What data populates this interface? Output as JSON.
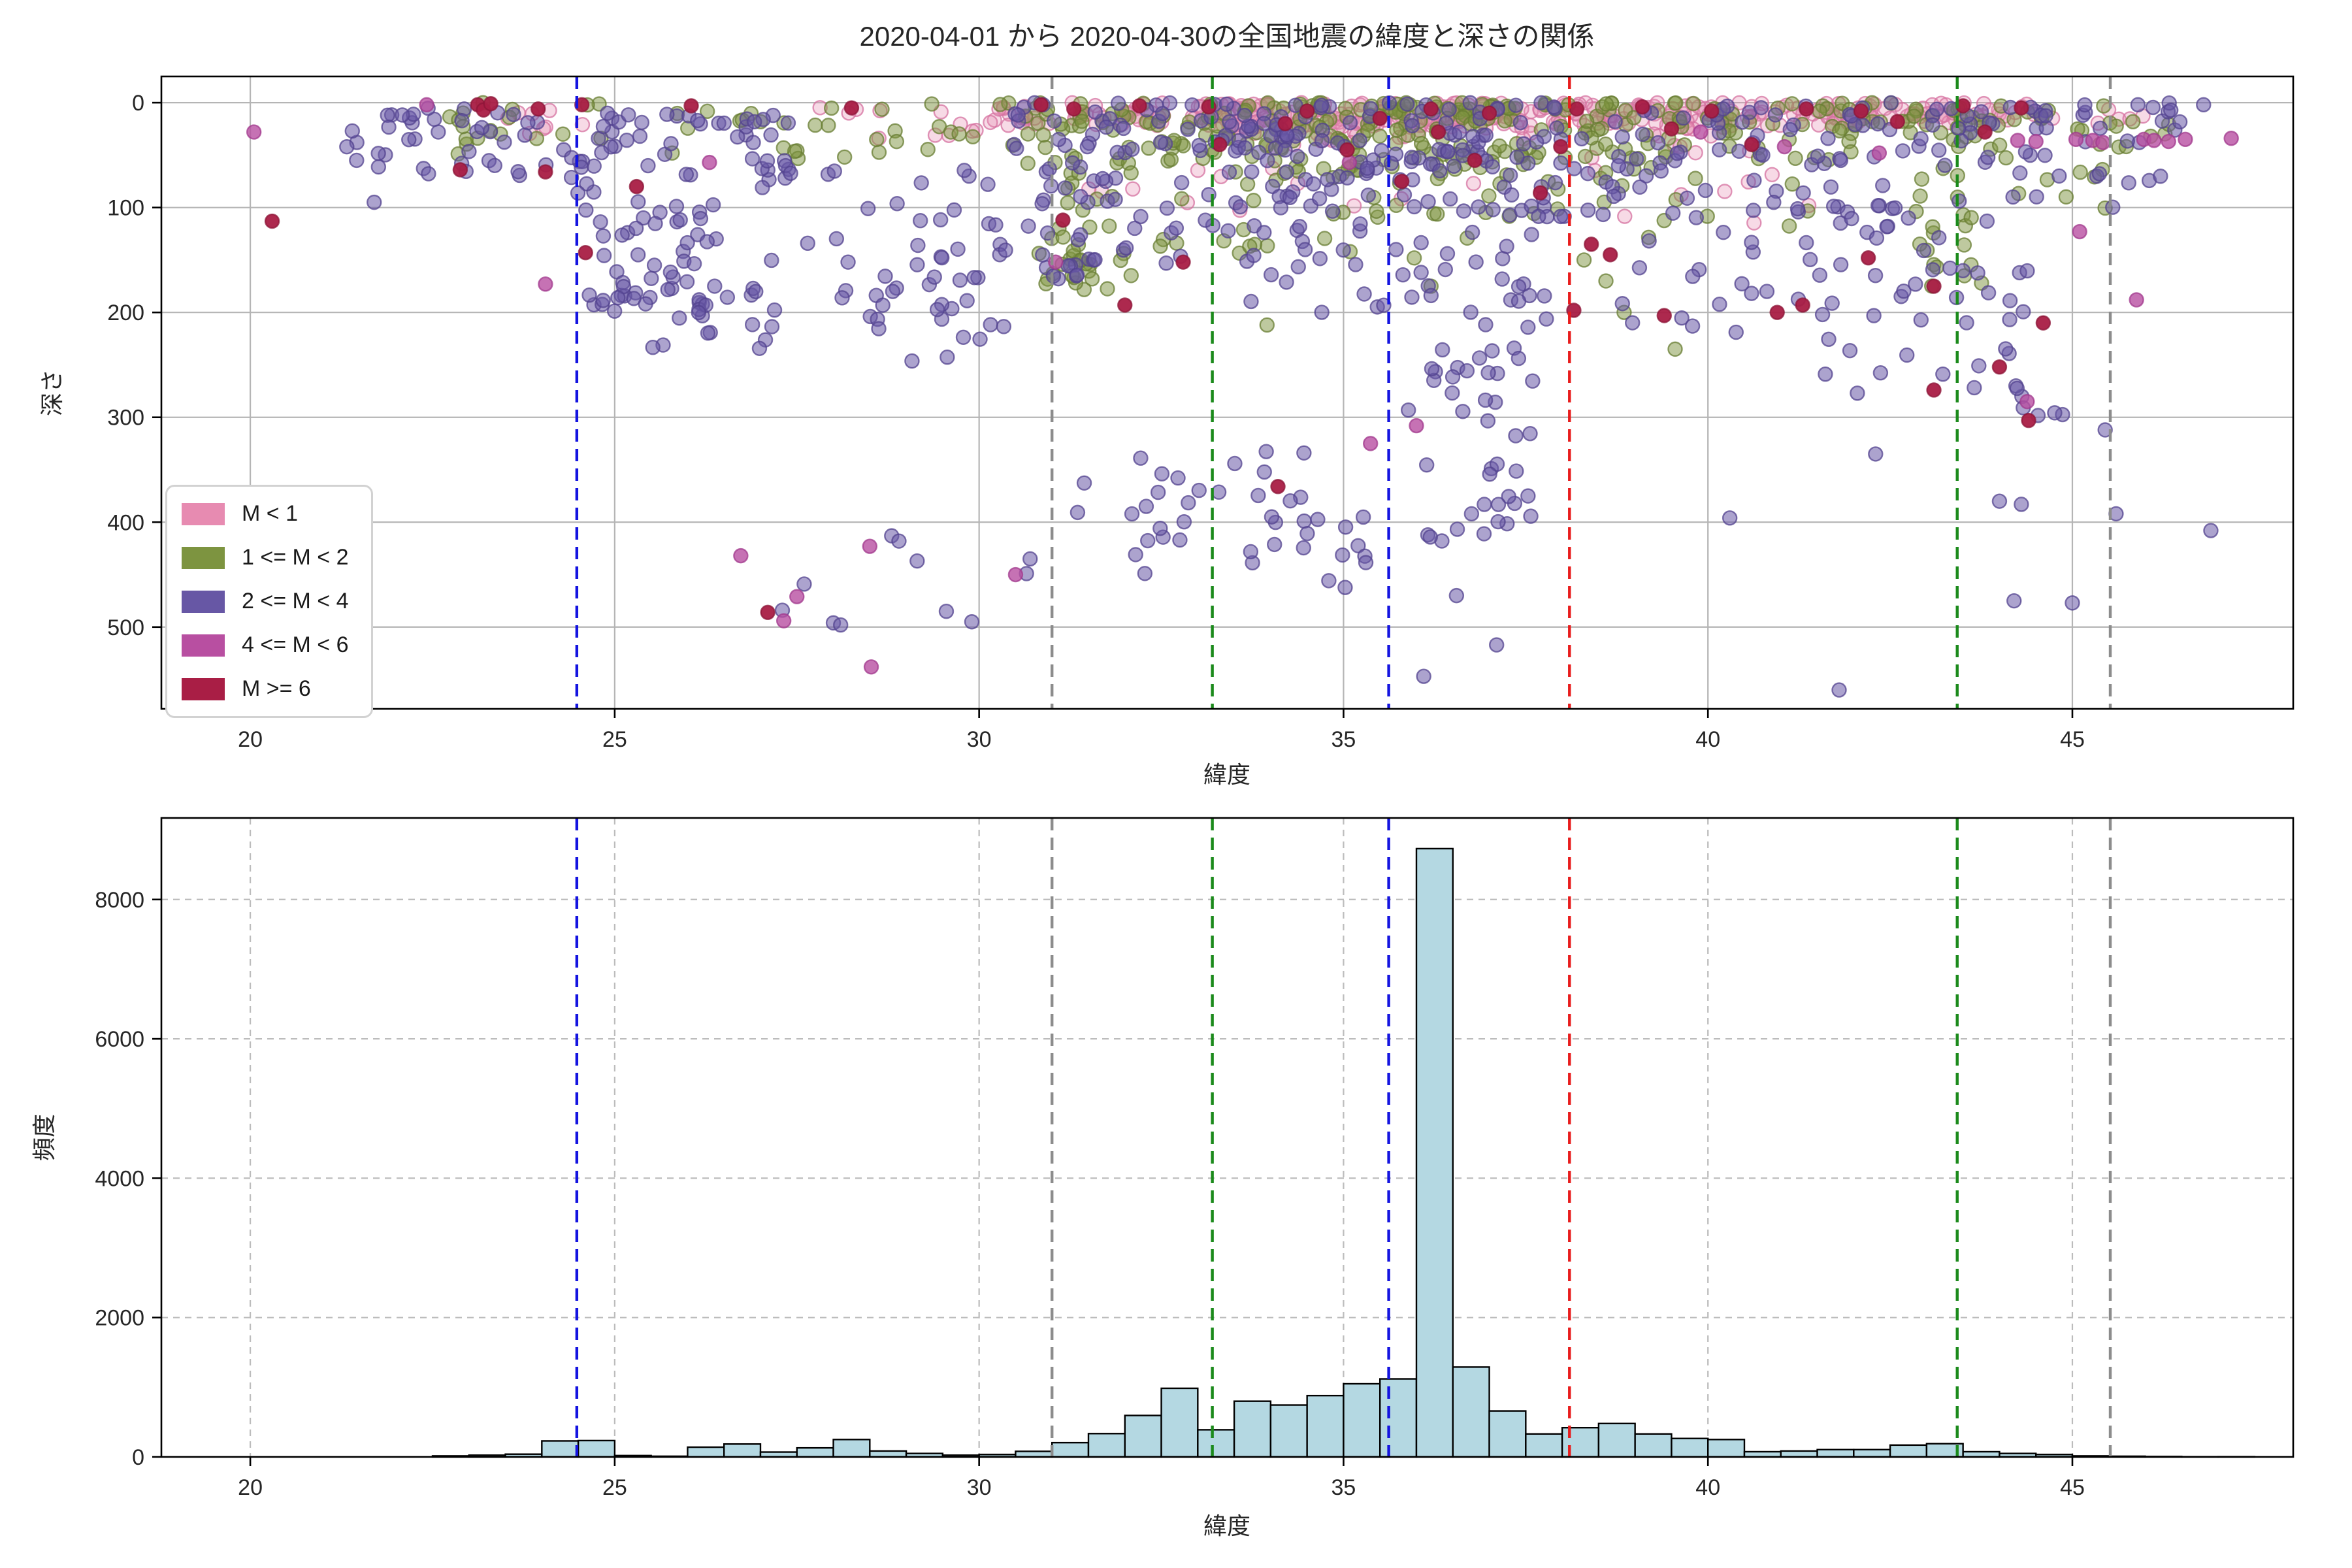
{
  "title": "2020-04-01 から 2020-04-30の全国地震の緯度と深さの関係",
  "chart_data": [
    {
      "type": "scatter",
      "title": "2020-04-01 から 2020-04-30の全国地震の緯度と深さの関係",
      "xlabel": "緯度",
      "ylabel": "深さ",
      "xlim": [
        18.78,
        48.03
      ],
      "ylim": [
        -25,
        578
      ],
      "y_inverted": true,
      "xticks": [
        20,
        25,
        30,
        35,
        40,
        45
      ],
      "yticks": [
        0,
        100,
        200,
        300,
        400,
        500
      ],
      "grid": "solid",
      "grid_color": "#b5b5b5",
      "legend_position": "lower left",
      "class_order": [
        "m0",
        "m1",
        "m2",
        "m4",
        "m6"
      ],
      "classes": {
        "m0": {
          "label": "M < 1",
          "fill": "#e78bb1",
          "edge": "#d672a0",
          "fill_opacity": 0.32
        },
        "m1": {
          "label": "1 <= M < 2",
          "fill": "#7d9440",
          "edge": "#687d33",
          "fill_opacity": 0.5
        },
        "m2": {
          "label": "2 <= M < 4",
          "fill": "#6757a5",
          "edge": "#53438f",
          "fill_opacity": 0.55
        },
        "m4": {
          "label": "4 <= M < 6",
          "fill": "#b84fa1",
          "edge": "#a23a8d",
          "fill_opacity": 0.8
        },
        "m6": {
          "label": "M >= 6",
          "fill": "#a91e45",
          "edge": "#8e1538",
          "fill_opacity": 0.95
        }
      },
      "ref_lines": [
        {
          "lat": 24.48,
          "color": "#1414e0"
        },
        {
          "lat": 31.0,
          "color": "#8c8c8c"
        },
        {
          "lat": 33.2,
          "color": "#1b8a1b"
        },
        {
          "lat": 35.62,
          "color": "#1414e0"
        },
        {
          "lat": 38.1,
          "color": "#e81c1c"
        },
        {
          "lat": 43.42,
          "color": "#1b8a1b"
        },
        {
          "lat": 45.52,
          "color": "#8c8c8c"
        }
      ],
      "marker_radius": 10.5,
      "clusters": {
        "m0": [
          [
            30.2,
            33.0,
            0,
            22,
            45,
            1
          ],
          [
            33.0,
            37.6,
            0,
            24,
            150,
            1
          ],
          [
            37.6,
            42.2,
            0,
            22,
            110,
            1
          ],
          [
            42.2,
            44.6,
            0,
            20,
            45,
            1
          ],
          [
            33.5,
            41.0,
            20,
            55,
            35,
            1.2
          ],
          [
            31.5,
            41.5,
            55,
            115,
            20,
            1
          ],
          [
            27.8,
            30.2,
            0,
            35,
            12,
            1
          ],
          [
            23.3,
            25.2,
            0,
            30,
            8,
            1
          ],
          [
            44.6,
            46.2,
            2,
            20,
            6,
            1
          ]
        ],
        "m1": [
          [
            30.3,
            33.2,
            0,
            60,
            55,
            1.4
          ],
          [
            33.2,
            38.0,
            0,
            65,
            150,
            1.4
          ],
          [
            38.0,
            42.5,
            0,
            55,
            80,
            1.3
          ],
          [
            42.5,
            46.4,
            0,
            45,
            45,
            1.2
          ],
          [
            22.6,
            27.0,
            0,
            50,
            25,
            1.2
          ],
          [
            27.0,
            30.3,
            0,
            60,
            22,
            1.2
          ],
          [
            31.0,
            36.5,
            65,
            150,
            45,
            1.2
          ],
          [
            36.5,
            41.5,
            60,
            130,
            25,
            1
          ],
          [
            31.2,
            32.2,
            140,
            185,
            8,
            1
          ],
          [
            43.0,
            45.5,
            50,
            110,
            10,
            1
          ],
          [
            42.8,
            43.8,
            60,
            180,
            18,
            1
          ],
          [
            30.8,
            31.4,
            125,
            185,
            14,
            1
          ]
        ],
        "m2": [
          [
            21.2,
            24.4,
            5,
            70,
            40,
            1.2
          ],
          [
            24.4,
            27.6,
            10,
            90,
            55,
            1.2
          ],
          [
            24.6,
            26.4,
            90,
            200,
            45,
            1
          ],
          [
            25.4,
            27.2,
            150,
            235,
            25,
            1
          ],
          [
            27.6,
            30.4,
            60,
            250,
            35,
            1
          ],
          [
            30.4,
            34.0,
            0,
            100,
            80,
            1.3
          ],
          [
            34.0,
            38.2,
            0,
            110,
            130,
            1.3
          ],
          [
            38.2,
            42.6,
            0,
            110,
            80,
            1.3
          ],
          [
            42.6,
            46.6,
            0,
            100,
            55,
            1.2
          ],
          [
            33.2,
            37.8,
            110,
            200,
            45,
            1
          ],
          [
            30.6,
            33.2,
            100,
            160,
            18,
            1
          ],
          [
            35.8,
            38.0,
            200,
            300,
            22,
            1
          ],
          [
            31.3,
            34.6,
            330,
            450,
            30,
            1
          ],
          [
            36.1,
            37.6,
            300,
            430,
            22,
            1
          ],
          [
            34.0,
            35.4,
            390,
            470,
            12,
            1
          ],
          [
            41.4,
            44.6,
            110,
            260,
            40,
            1
          ],
          [
            43.4,
            45.0,
            260,
            300,
            8,
            1
          ],
          [
            38.5,
            42.0,
            120,
            220,
            20,
            1
          ],
          [
            28.8,
            30.4,
            100,
            250,
            15,
            1
          ],
          [
            30.8,
            31.4,
            125,
            185,
            8,
            1
          ]
        ],
        "m4": [],
        "m6": []
      },
      "points": {
        "m0": [],
        "m1": [
          [
            33.95,
            212
          ],
          [
            38.85,
            200
          ],
          [
            36.2,
            175
          ],
          [
            31.55,
            168
          ],
          [
            31.4,
            150
          ],
          [
            39.55,
            235
          ],
          [
            38.3,
            150
          ],
          [
            38.6,
            170
          ]
        ],
        "m2": [
          [
            21.4,
            27
          ],
          [
            21.7,
            95
          ],
          [
            27.3,
            484
          ],
          [
            27.6,
            459
          ],
          [
            28.0,
            496
          ],
          [
            28.1,
            498
          ],
          [
            28.8,
            413
          ],
          [
            28.9,
            418
          ],
          [
            29.9,
            495
          ],
          [
            29.15,
            437
          ],
          [
            29.55,
            485
          ],
          [
            30.65,
            449
          ],
          [
            30.7,
            435
          ],
          [
            36.1,
            547
          ],
          [
            37.1,
            517
          ],
          [
            40.3,
            396
          ],
          [
            41.8,
            560
          ],
          [
            42.05,
            277
          ],
          [
            42.3,
            335
          ],
          [
            44.0,
            380
          ],
          [
            44.3,
            383
          ],
          [
            44.2,
            475
          ],
          [
            45.0,
            477
          ],
          [
            45.45,
            312
          ],
          [
            45.6,
            392
          ],
          [
            46.9,
            408
          ],
          [
            36.55,
            470
          ],
          [
            45.9,
            2
          ],
          [
            46.8,
            2
          ]
        ],
        "m4": [
          [
            20.05,
            28
          ],
          [
            22.42,
            2
          ],
          [
            24.05,
            173
          ],
          [
            26.3,
            57
          ],
          [
            26.73,
            432
          ],
          [
            27.5,
            471
          ],
          [
            27.32,
            494
          ],
          [
            28.5,
            423
          ],
          [
            28.52,
            538
          ],
          [
            30.5,
            450
          ],
          [
            31.05,
            152
          ],
          [
            35.08,
            57
          ],
          [
            35.37,
            325
          ],
          [
            36.0,
            308
          ],
          [
            39.9,
            28
          ],
          [
            41.05,
            42
          ],
          [
            42.35,
            48
          ],
          [
            44.38,
            285
          ],
          [
            45.1,
            123
          ],
          [
            45.88,
            188
          ],
          [
            44.25,
            36
          ],
          [
            44.5,
            37
          ],
          [
            45.05,
            35
          ],
          [
            45.28,
            36
          ],
          [
            45.42,
            38
          ],
          [
            45.98,
            35
          ],
          [
            46.12,
            36
          ],
          [
            46.32,
            37
          ],
          [
            46.55,
            35
          ],
          [
            47.18,
            34
          ]
        ],
        "m6": [
          [
            20.3,
            113
          ],
          [
            23.12,
            2
          ],
          [
            23.2,
            7
          ],
          [
            23.3,
            1
          ],
          [
            23.95,
            6
          ],
          [
            24.55,
            2
          ],
          [
            22.88,
            64
          ],
          [
            24.05,
            66
          ],
          [
            24.6,
            143
          ],
          [
            25.3,
            80
          ],
          [
            26.05,
            3
          ],
          [
            28.25,
            5
          ],
          [
            27.1,
            486
          ],
          [
            30.85,
            2
          ],
          [
            31.15,
            112
          ],
          [
            31.3,
            6
          ],
          [
            32.2,
            3
          ],
          [
            32.8,
            152
          ],
          [
            32.0,
            193
          ],
          [
            33.15,
            4
          ],
          [
            33.3,
            40
          ],
          [
            34.1,
            366
          ],
          [
            34.5,
            8
          ],
          [
            35.05,
            45
          ],
          [
            35.8,
            75
          ],
          [
            36.2,
            6
          ],
          [
            36.3,
            28
          ],
          [
            37.0,
            10
          ],
          [
            37.7,
            86
          ],
          [
            37.98,
            42
          ],
          [
            38.4,
            135
          ],
          [
            38.66,
            145
          ],
          [
            38.16,
            198
          ],
          [
            39.4,
            203
          ],
          [
            40.95,
            200
          ],
          [
            41.3,
            193
          ],
          [
            42.2,
            148
          ],
          [
            43.1,
            274
          ],
          [
            38.2,
            6
          ],
          [
            39.1,
            4
          ],
          [
            40.05,
            8
          ],
          [
            41.35,
            6
          ],
          [
            42.1,
            8
          ],
          [
            43.5,
            3
          ],
          [
            44.3,
            5
          ],
          [
            44.6,
            210
          ],
          [
            44.0,
            252
          ],
          [
            44.4,
            303
          ],
          [
            34.2,
            20
          ],
          [
            35.5,
            15
          ],
          [
            36.8,
            55
          ],
          [
            39.5,
            25
          ],
          [
            40.6,
            40
          ],
          [
            42.6,
            18
          ],
          [
            43.8,
            28
          ],
          [
            43.1,
            175
          ]
        ]
      }
    },
    {
      "type": "bar",
      "xlabel": "緯度",
      "ylabel": "頻度",
      "xlim": [
        18.78,
        48.03
      ],
      "ylim": [
        0,
        9170
      ],
      "xticks": [
        20,
        25,
        30,
        35,
        40,
        45
      ],
      "yticks": [
        0,
        2000,
        4000,
        6000,
        8000
      ],
      "grid": "dashed",
      "grid_color": "#bcbcbc",
      "bar_fill": "#b4d8e2",
      "bar_edge": "#000000",
      "bin_start": 22.5,
      "bin_width": 0.5,
      "values": [
        15,
        25,
        40,
        230,
        235,
        20,
        10,
        140,
        185,
        70,
        130,
        250,
        85,
        50,
        25,
        35,
        80,
        205,
        335,
        595,
        985,
        390,
        800,
        745,
        880,
        1050,
        1120,
        8730,
        1290,
        660,
        330,
        420,
        480,
        330,
        265,
        250,
        75,
        85,
        105,
        105,
        170,
        190,
        75,
        50,
        35,
        15,
        10,
        6,
        2,
        3
      ],
      "ref_lines": [
        {
          "lat": 24.48,
          "color": "#1414e0"
        },
        {
          "lat": 31.0,
          "color": "#8c8c8c"
        },
        {
          "lat": 33.2,
          "color": "#1b8a1b"
        },
        {
          "lat": 35.62,
          "color": "#1414e0"
        },
        {
          "lat": 38.1,
          "color": "#e81c1c"
        },
        {
          "lat": 43.42,
          "color": "#1b8a1b"
        },
        {
          "lat": 45.52,
          "color": "#8c8c8c"
        }
      ]
    }
  ]
}
